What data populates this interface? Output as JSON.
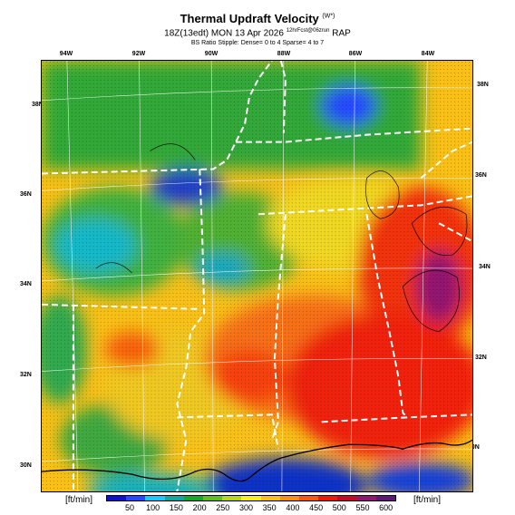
{
  "header": {
    "title": "Thermal Updraft Velocity",
    "title_unit": "(W*)",
    "subtitle_main": "18Z(13edt) MON 13 Apr 2026",
    "subtitle_run": "12hrFcst@06zrun",
    "subtitle_model": "RAP",
    "bs_line": "BS Ratio Stipple: Dense= 0 to 4  Sparse= 4 to 7"
  },
  "map": {
    "lon_labels": [
      "94W",
      "92W",
      "90W",
      "88W",
      "86W",
      "84W"
    ],
    "lat_labels_left": [
      "38N",
      "36N",
      "34N",
      "32N",
      "30N"
    ],
    "lat_labels_right": [
      "38N",
      "36N",
      "34N",
      "32N",
      "30N"
    ]
  },
  "colorbar": {
    "unit_left": "[ft/min]",
    "unit_right": "[ft/min]",
    "ticks": [
      "50",
      "100",
      "150",
      "200",
      "250",
      "300",
      "350",
      "400",
      "450",
      "500",
      "550",
      "600"
    ],
    "colors": [
      "#1010c8",
      "#2848ff",
      "#18c8ff",
      "#10a8a0",
      "#18a828",
      "#60c020",
      "#b8d818",
      "#f8f020",
      "#f8c018",
      "#f89010",
      "#f85810",
      "#f01808",
      "#c80828",
      "#901870",
      "#601878"
    ]
  },
  "legend_note": ""
}
